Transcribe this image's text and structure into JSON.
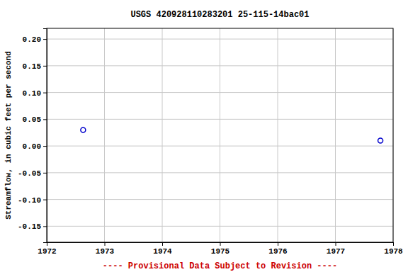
{
  "chart_data": {
    "type": "scatter",
    "title": "USGS 420928110283201 25-115-14bac01",
    "y_label": "Streamflow, in cubic feet per second",
    "annotation": "---- Provisional Data Subject to Revision ----",
    "x": [
      1972.63,
      1977.78
    ],
    "values": [
      0.03,
      0.01
    ],
    "color": "#0000cc",
    "marker": "open-circle",
    "xlim": [
      1972,
      1978
    ],
    "xticks": [
      1972,
      1973,
      1974,
      1975,
      1976,
      1977,
      1978
    ],
    "ylim": [
      -0.18,
      0.22
    ],
    "yticks": [
      {
        "value": -0.15,
        "label": "-0.15"
      },
      {
        "value": -0.1,
        "label": "-0.10"
      },
      -0.05,
      {
        "value": 0,
        "label": "0.00"
      },
      0.05,
      {
        "value": 0.1,
        "label": "0.10"
      },
      {
        "value": 0.15,
        "label": "0.15"
      },
      {
        "value": 0.2,
        "label": "0.20"
      }
    ],
    "grid": true
  }
}
